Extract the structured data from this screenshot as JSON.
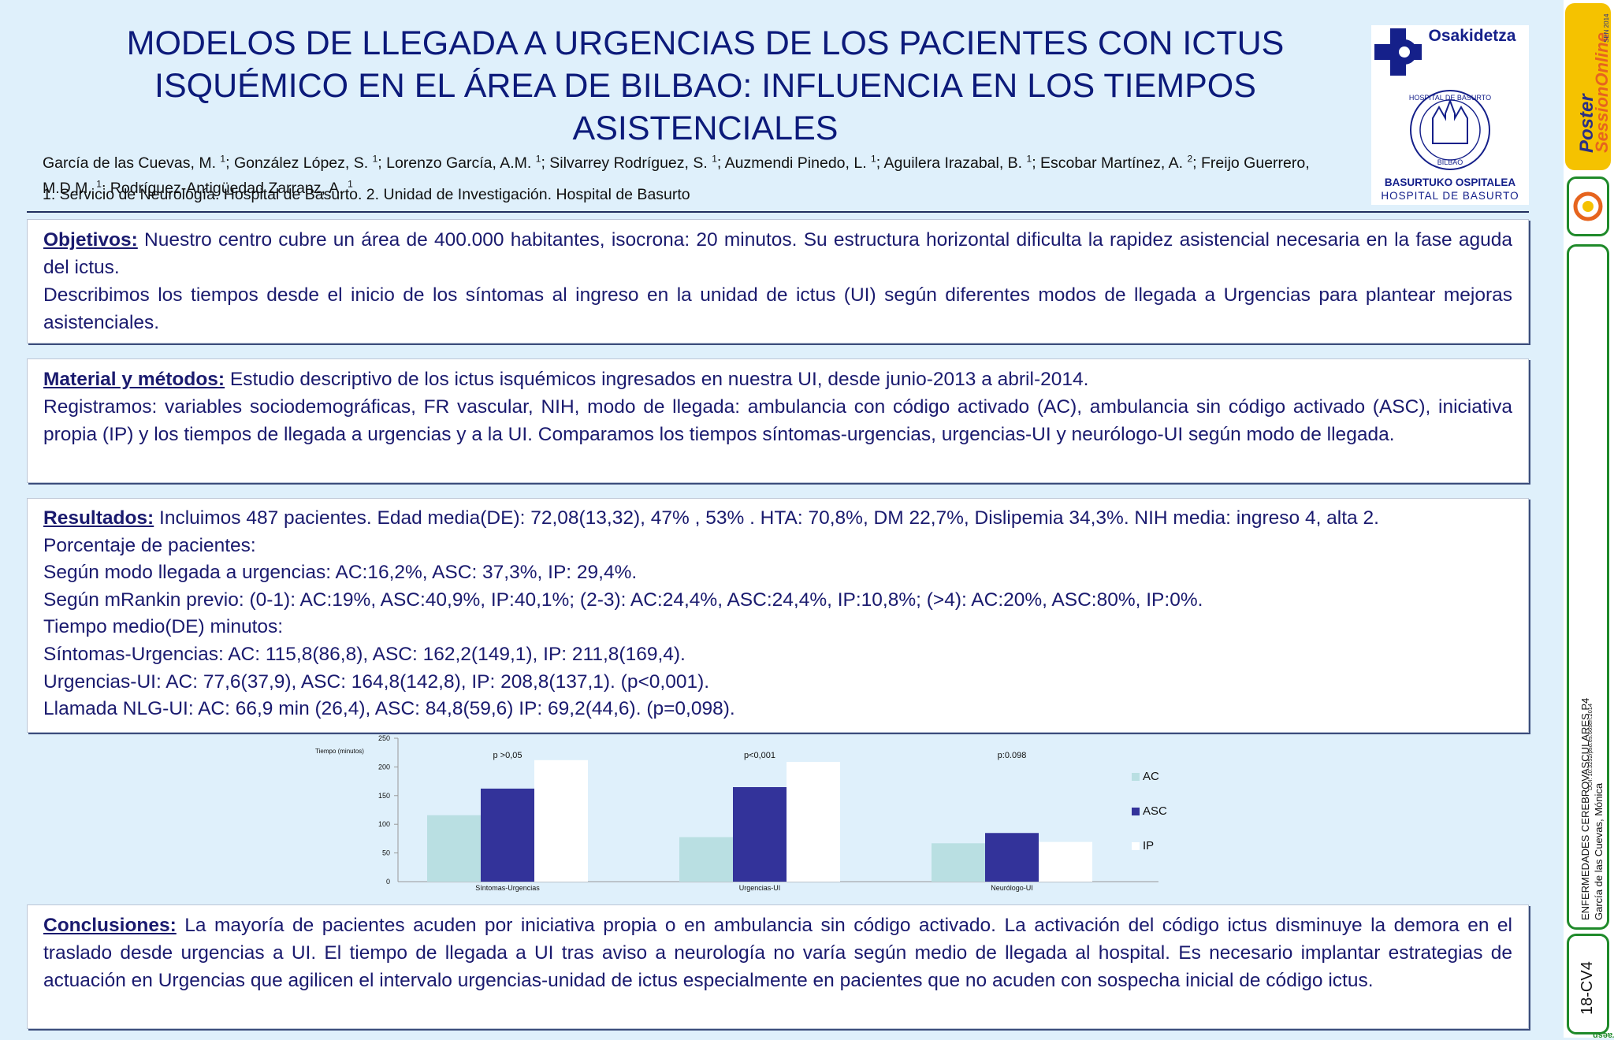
{
  "title_lines": [
    "MODELOS DE LLEGADA A URGENCIAS DE LOS PACIENTES CON ICTUS",
    "ISQUÉMICO EN EL ÁREA DE BILBAO: INFLUENCIA EN LOS TIEMPOS",
    "ASISTENCIALES"
  ],
  "authors": [
    {
      "name": "García de las Cuevas, M.",
      "sup": "1"
    },
    {
      "name": "González López, S.",
      "sup": "1"
    },
    {
      "name": "Lorenzo García, A.M.",
      "sup": "1"
    },
    {
      "name": "Silvarrey Rodríguez, S.",
      "sup": "1"
    },
    {
      "name": "Auzmendi Pinedo, L.",
      "sup": "1"
    },
    {
      "name": "Aguilera Irazabal, B.",
      "sup": "1"
    },
    {
      "name": "Escobar Martínez, A.",
      "sup": "2"
    },
    {
      "name": "Freijo Guerrero, M.D.M.",
      "sup": "1"
    },
    {
      "name": "Rodríguez-Antigüedad Zarranz, A.",
      "sup": "1"
    }
  ],
  "affiliations": "1. Servicio de Neurología. Hospital de Basurto. 2. Unidad de Investigación. Hospital de Basurto",
  "logo": {
    "brand": "Osakidetza",
    "seal_text_top": "HOSPITAL DE BASURTO",
    "seal_text_bottom": "BILBAO",
    "line1": "BASURTUKO OSPITALEA",
    "line2": "HOSPITAL DE BASURTO"
  },
  "objetivos": {
    "heading": "Objetivos:",
    "p1": "Nuestro centro cubre un área de 400.000 habitantes, isocrona: 20 minutos. Su estructura horizontal dificulta la rapidez asistencial necesaria en la fase aguda del ictus.",
    "p2": "Describimos los tiempos desde el inicio de los síntomas al ingreso en la unidad de ictus (UI) según diferentes modos de llegada a Urgencias para plantear mejoras asistenciales."
  },
  "metodos": {
    "heading": "Material y métodos:",
    "p1": "Estudio descriptivo de los ictus isquémicos ingresados en nuestra UI, desde junio-2013 a abril-2014.",
    "p2": "Registramos: variables sociodemográficas, FR vascular, NIH, modo de llegada: ambulancia con código activado (AC), ambulancia sin código activado (ASC), iniciativa propia (IP) y los tiempos  de llegada a urgencias y a la UI. Comparamos los tiempos síntomas-urgencias, urgencias-UI y neurólogo-UI según modo de llegada."
  },
  "resultados": {
    "heading": "Resultados:",
    "lines": [
      "Incluimos 487 pacientes. Edad media(DE): 72,08(13,32), 47%    , 53%    . HTA: 70,8%, DM 22,7%, Dislipemia 34,3%. NIH media: ingreso 4, alta 2.",
      "Porcentaje de pacientes:",
      "Según modo llegada a urgencias: AC:16,2%, ASC: 37,3%, IP: 29,4%.",
      "Según mRankin previo:  (0-1): AC:19%, ASC:40,9%, IP:40,1%;  (2-3): AC:24,4%, ASC:24,4%, IP:10,8%;  (>4): AC:20%, ASC:80%, IP:0%.",
      "Tiempo medio(DE) minutos:",
      "Síntomas-Urgencias: AC: 115,8(86,8), ASC: 162,2(149,1), IP: 211,8(169,4).",
      "Urgencias-UI: AC: 77,6(37,9), ASC: 164,8(142,8), IP: 208,8(137,1). (p<0,001).",
      "Llamada NLG-UI: AC: 66,9 min (26,4), ASC: 84,8(59,6) IP: 69,2(44,6). (p=0,098)."
    ]
  },
  "chart_data": {
    "type": "bar",
    "ylabel": "Tiempo (minutos)",
    "ylim": [
      0,
      250
    ],
    "yticks": [
      0,
      50,
      100,
      150,
      200,
      250
    ],
    "categories": [
      "Síntomas-Urgencias",
      "Urgencias-UI",
      "Neurólogo-UI"
    ],
    "annotations": [
      "p >0,05",
      "p<0,001",
      "p:0.098"
    ],
    "series": [
      {
        "name": "AC",
        "color": "#b9dfe2",
        "values": [
          115.8,
          77.6,
          66.9
        ]
      },
      {
        "name": "ASC",
        "color": "#33339a",
        "values": [
          162.2,
          164.8,
          84.8
        ]
      },
      {
        "name": "IP",
        "color": "#ffffff",
        "values": [
          211.8,
          208.8,
          69.2
        ]
      }
    ],
    "legend": "right",
    "grid": false
  },
  "conclusiones": {
    "heading": "Conclusiones:",
    "text": "La mayoría de pacientes acuden por iniciativa propia o en ambulancia sin código activado. La activación del código ictus disminuye la demora en el traslado desde urgencias a UI. El tiempo de llegada a UI tras aviso a neurología no varía según medio de llegada al hospital. Es necesario implantar estrategias de actuación en Urgencias que agilicen el intervalo urgencias-unidad de ictus especialmente en pacientes que no acuden con sospecha inicial de código ictus."
  },
  "sidebar": {
    "brand_a": "Poster",
    "brand_b": "SessionOnline",
    "brand_c": "SEN 2014",
    "doi": "DOI: 10.3252/pso.es.66sen.2014",
    "session": "ENFERMEDADES CEREBROVASCULARES P4",
    "author": "García de las Cuevas, Mónica",
    "code": "18-CV4",
    "footer": "egraesn",
    "colors": {
      "green": "#1f8a2a",
      "yellow": "#f5c200",
      "orange": "#e6641e"
    }
  }
}
